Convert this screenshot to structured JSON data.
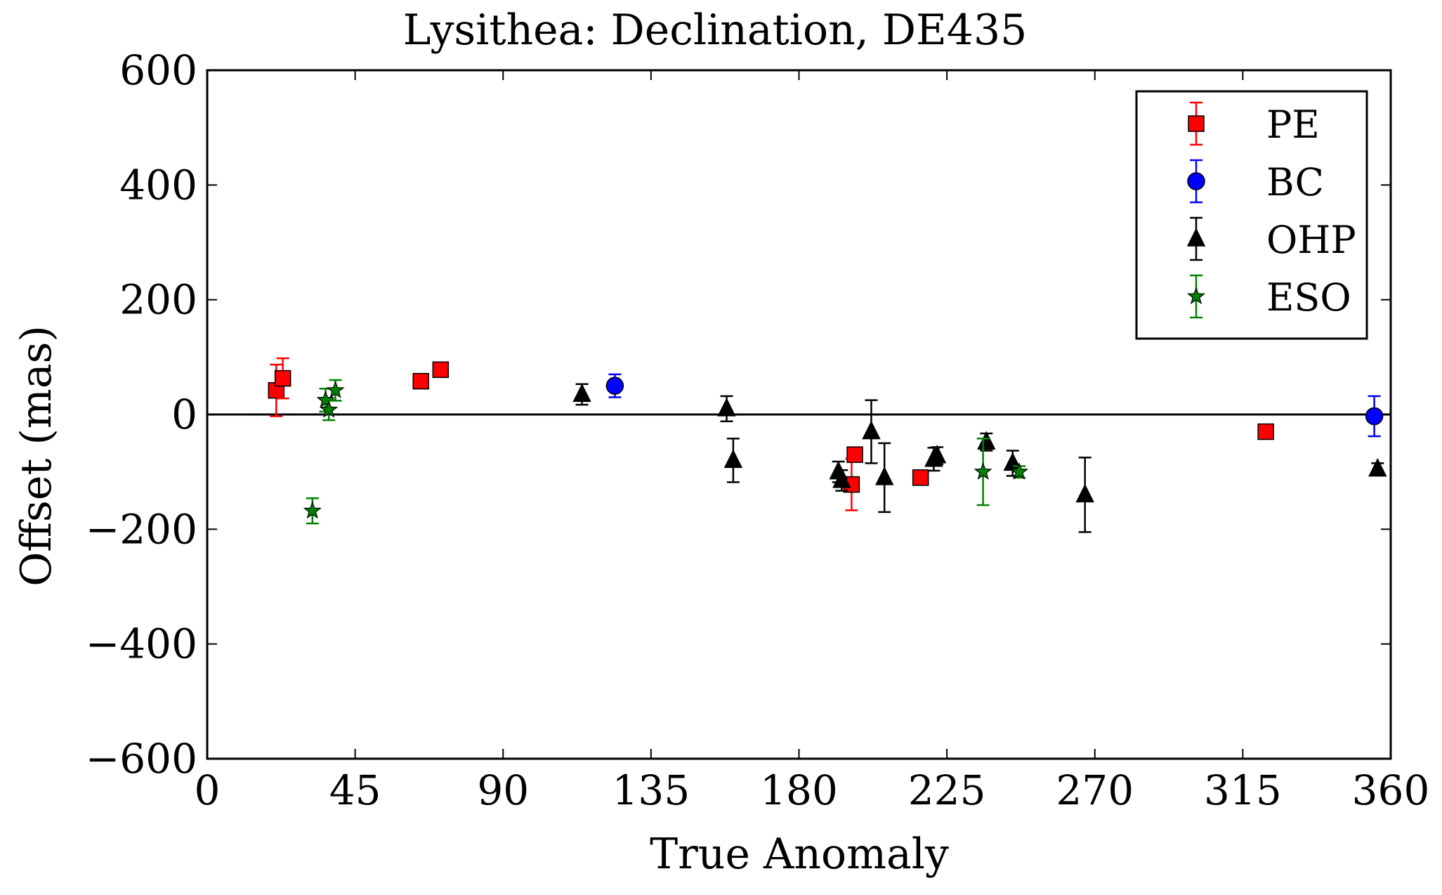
{
  "chart_data": {
    "type": "scatter",
    "title": "Lysithea: Declination, DE435",
    "xlabel": "True Anomaly",
    "ylabel": "Offset (mas)",
    "xlim": [
      0,
      360
    ],
    "ylim": [
      -600,
      600
    ],
    "xticks": [
      0,
      45,
      90,
      135,
      180,
      225,
      270,
      315,
      360
    ],
    "yticks": [
      600,
      400,
      200,
      0,
      -200,
      -400,
      -600
    ],
    "xtick_labels": [
      "0",
      "45",
      "90",
      "135",
      "180",
      "225",
      "270",
      "315",
      "360"
    ],
    "ytick_labels": [
      "600",
      "400",
      "200",
      "0",
      "−200",
      "−400",
      "−600"
    ],
    "zero_line": true,
    "grid": false,
    "legend_position": "top-right",
    "series": [
      {
        "name": "PE",
        "marker": "square",
        "color": "#ff0000",
        "error_color": "#ff0000",
        "points": [
          {
            "x": 21,
            "y": 42,
            "err": 45
          },
          {
            "x": 23,
            "y": 63,
            "err": 35
          },
          {
            "x": 65,
            "y": 58,
            "err": 0
          },
          {
            "x": 71,
            "y": 78,
            "err": 0
          },
          {
            "x": 196,
            "y": -122,
            "err": 45
          },
          {
            "x": 197,
            "y": -70,
            "err": 0
          },
          {
            "x": 217,
            "y": -110,
            "err": 0
          },
          {
            "x": 322,
            "y": -30,
            "err": 0
          }
        ]
      },
      {
        "name": "BC",
        "marker": "circle",
        "color": "#0000ff",
        "error_color": "#0000ff",
        "points": [
          {
            "x": 124,
            "y": 50,
            "err": 20
          },
          {
            "x": 355,
            "y": -3,
            "err": 35
          }
        ]
      },
      {
        "name": "OHP",
        "marker": "triangle",
        "color": "#000000",
        "error_color": "#000000",
        "points": [
          {
            "x": 114,
            "y": 35,
            "err": 18
          },
          {
            "x": 158,
            "y": 10,
            "err": 22
          },
          {
            "x": 160,
            "y": -80,
            "err": 38
          },
          {
            "x": 192,
            "y": -100,
            "err": 18
          },
          {
            "x": 193,
            "y": -115,
            "err": 18
          },
          {
            "x": 202,
            "y": -30,
            "err": 55
          },
          {
            "x": 206,
            "y": -110,
            "err": 60
          },
          {
            "x": 221,
            "y": -78,
            "err": 20
          },
          {
            "x": 222,
            "y": -72,
            "err": 15
          },
          {
            "x": 237,
            "y": -48,
            "err": 15
          },
          {
            "x": 245,
            "y": -85,
            "err": 22
          },
          {
            "x": 267,
            "y": -140,
            "err": 65
          },
          {
            "x": 356,
            "y": -95,
            "err": 10
          }
        ]
      },
      {
        "name": "ESO",
        "marker": "star",
        "color": "#008000",
        "error_color": "#008000",
        "points": [
          {
            "x": 32,
            "y": -168,
            "err": 22
          },
          {
            "x": 36,
            "y": 25,
            "err": 20
          },
          {
            "x": 37,
            "y": 8,
            "err": 18
          },
          {
            "x": 39,
            "y": 42,
            "err": 18
          },
          {
            "x": 236,
            "y": -100,
            "err": 58
          },
          {
            "x": 247,
            "y": -100,
            "err": 10
          }
        ]
      }
    ]
  }
}
